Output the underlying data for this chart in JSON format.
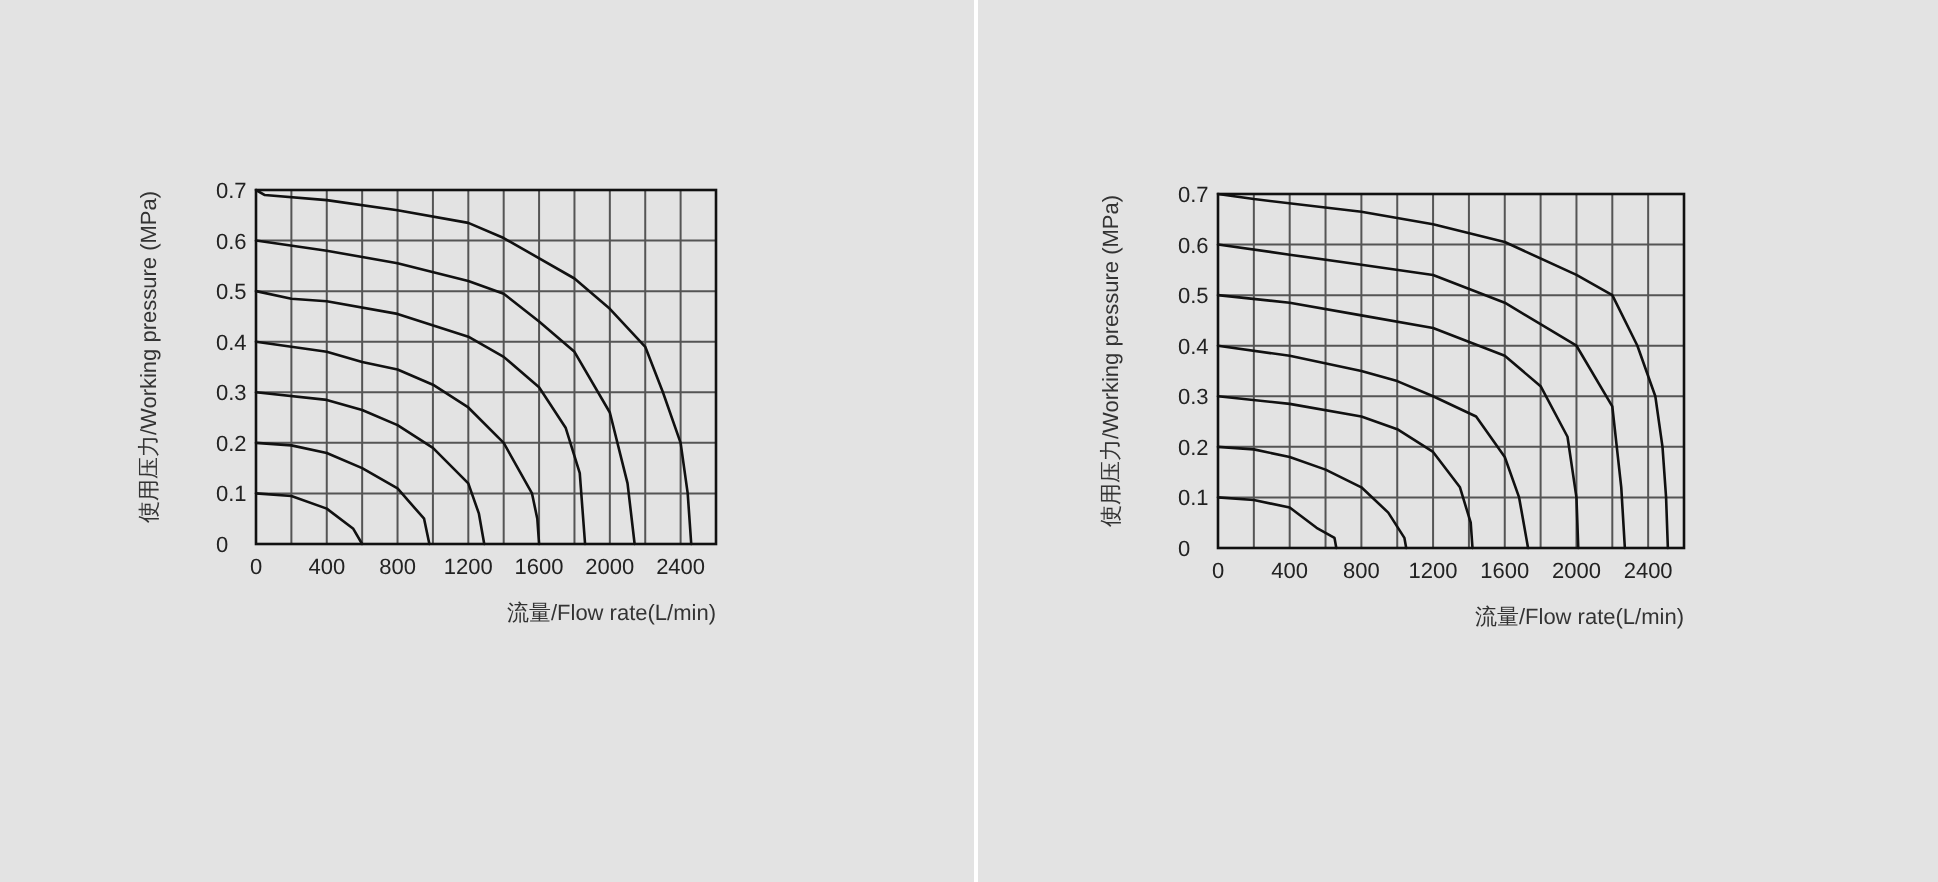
{
  "chart_data": [
    {
      "type": "line",
      "xlabel": "流量/Flow rate(L/min)",
      "ylabel": "使用压力/Working pressure (MPa)",
      "xlim": [
        0,
        2600
      ],
      "ylim": [
        0,
        0.7
      ],
      "xticks": [
        0,
        {
          "value": 200,
          "label": null
        },
        400,
        {
          "value": 600,
          "label": null
        },
        800,
        {
          "value": 1000,
          "label": null
        },
        1200,
        {
          "value": 1400,
          "label": null
        },
        1600,
        {
          "value": 1800,
          "label": null
        },
        2000,
        {
          "value": 2200,
          "label": null
        },
        2400
      ],
      "yticks": [
        0,
        0.1,
        0.2,
        0.3,
        0.4,
        0.5,
        0.6,
        0.7
      ],
      "grid": true,
      "marker": "none",
      "line_style": "solid",
      "series": [
        {
          "color": "#111111",
          "x": [
            0,
            200,
            400,
            550,
            600
          ],
          "values": [
            0.1,
            0.095,
            0.07,
            0.03,
            0
          ]
        },
        {
          "color": "#111111",
          "x": [
            0,
            200,
            400,
            600,
            800,
            950,
            980
          ],
          "values": [
            0.2,
            0.195,
            0.18,
            0.15,
            0.11,
            0.05,
            0
          ]
        },
        {
          "color": "#111111",
          "x": [
            0,
            400,
            600,
            800,
            1000,
            1200,
            1260,
            1290
          ],
          "values": [
            0.3,
            0.285,
            0.265,
            0.235,
            0.19,
            0.12,
            0.06,
            0
          ]
        },
        {
          "color": "#111111",
          "x": [
            0,
            400,
            600,
            800,
            1000,
            1200,
            1400,
            1560,
            1590,
            1600
          ],
          "values": [
            0.4,
            0.38,
            0.36,
            0.345,
            0.315,
            0.27,
            0.2,
            0.1,
            0.05,
            0
          ]
        },
        {
          "color": "#111111",
          "x": [
            0,
            200,
            400,
            800,
            1200,
            1400,
            1600,
            1750,
            1830,
            1860
          ],
          "values": [
            0.5,
            0.485,
            0.48,
            0.455,
            0.41,
            0.37,
            0.31,
            0.23,
            0.14,
            0
          ]
        },
        {
          "color": "#111111",
          "x": [
            0,
            400,
            800,
            1200,
            1400,
            1600,
            1800,
            2000,
            2100,
            2140
          ],
          "values": [
            0.6,
            0.58,
            0.555,
            0.52,
            0.495,
            0.44,
            0.38,
            0.26,
            0.12,
            0
          ]
        },
        {
          "color": "#111111",
          "x": [
            0,
            50,
            400,
            800,
            1200,
            1400,
            1800,
            2000,
            2200,
            2300,
            2400,
            2440,
            2460
          ],
          "values": [
            0.7,
            0.69,
            0.68,
            0.66,
            0.635,
            0.605,
            0.525,
            0.465,
            0.39,
            0.3,
            0.2,
            0.1,
            0
          ]
        }
      ]
    },
    {
      "type": "line",
      "xlabel": "流量/Flow rate(L/min)",
      "ylabel": "使用压力/Working pressure (MPa)",
      "xlim": [
        0,
        2600
      ],
      "ylim": [
        0,
        0.7
      ],
      "xticks": [
        0,
        {
          "value": 200,
          "label": null
        },
        400,
        {
          "value": 600,
          "label": null
        },
        800,
        {
          "value": 1000,
          "label": null
        },
        1200,
        {
          "value": 1400,
          "label": null
        },
        1600,
        {
          "value": 1800,
          "label": null
        },
        2000,
        {
          "value": 2200,
          "label": null
        },
        2400
      ],
      "yticks": [
        0,
        0.1,
        0.2,
        0.3,
        0.4,
        0.5,
        0.6,
        0.7
      ],
      "grid": true,
      "marker": "none",
      "line_style": "solid",
      "series": [
        {
          "color": "#111111",
          "x": [
            0,
            200,
            400,
            550,
            650,
            660
          ],
          "values": [
            0.1,
            0.095,
            0.08,
            0.04,
            0.02,
            0
          ]
        },
        {
          "color": "#111111",
          "x": [
            0,
            200,
            400,
            600,
            800,
            950,
            1040,
            1050
          ],
          "values": [
            0.2,
            0.195,
            0.18,
            0.155,
            0.12,
            0.07,
            0.02,
            0
          ]
        },
        {
          "color": "#111111",
          "x": [
            0,
            400,
            800,
            1000,
            1200,
            1350,
            1410,
            1420
          ],
          "values": [
            0.3,
            0.285,
            0.26,
            0.235,
            0.19,
            0.12,
            0.05,
            0
          ]
        },
        {
          "color": "#111111",
          "x": [
            0,
            400,
            800,
            1000,
            1200,
            1440,
            1600,
            1680,
            1720,
            1730
          ],
          "values": [
            0.4,
            0.38,
            0.35,
            0.33,
            0.3,
            0.26,
            0.18,
            0.1,
            0.02,
            0
          ]
        },
        {
          "color": "#111111",
          "x": [
            0,
            400,
            800,
            1200,
            1600,
            1800,
            1950,
            2000,
            2010
          ],
          "values": [
            0.5,
            0.485,
            0.46,
            0.435,
            0.38,
            0.32,
            0.22,
            0.1,
            0
          ]
        },
        {
          "color": "#111111",
          "x": [
            0,
            400,
            800,
            1200,
            1600,
            2000,
            2200,
            2250,
            2270
          ],
          "values": [
            0.6,
            0.58,
            0.56,
            0.54,
            0.485,
            0.4,
            0.28,
            0.12,
            0
          ]
        },
        {
          "color": "#111111",
          "x": [
            0,
            200,
            800,
            1200,
            1600,
            2000,
            2200,
            2340,
            2440,
            2480,
            2500,
            2510
          ],
          "values": [
            0.7,
            0.69,
            0.665,
            0.64,
            0.605,
            0.54,
            0.5,
            0.4,
            0.3,
            0.2,
            0.1,
            0
          ]
        }
      ]
    }
  ]
}
